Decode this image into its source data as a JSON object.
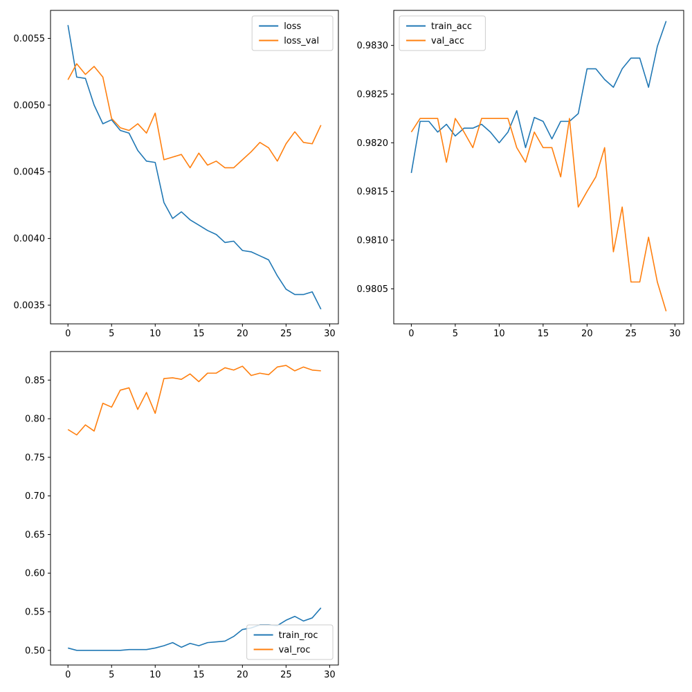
{
  "chart_data": [
    {
      "type": "line",
      "title": "",
      "xlabel": "",
      "ylabel": "",
      "xlim": [
        -2,
        31
      ],
      "ylim": [
        0.00336,
        0.00571
      ],
      "xticks": [
        0,
        5,
        10,
        15,
        20,
        25,
        30
      ],
      "yticks": [
        0.0035,
        0.004,
        0.0045,
        0.005,
        0.0055
      ],
      "ytick_labels": [
        "0.0035",
        "0.0040",
        "0.0045",
        "0.0050",
        "0.0055"
      ],
      "legend_position": "upper right",
      "grid": false,
      "x": [
        0,
        1,
        2,
        3,
        4,
        5,
        6,
        7,
        8,
        9,
        10,
        11,
        12,
        13,
        14,
        15,
        16,
        17,
        18,
        19,
        20,
        21,
        22,
        23,
        24,
        25,
        26,
        27,
        28,
        29
      ],
      "series": [
        {
          "name": "loss",
          "color": "#1f77b4",
          "values": [
            0.0056,
            0.00521,
            0.0052,
            0.005,
            0.00486,
            0.00489,
            0.00481,
            0.00479,
            0.00466,
            0.00458,
            0.00457,
            0.00427,
            0.00415,
            0.0042,
            0.00414,
            0.0041,
            0.00406,
            0.00403,
            0.00397,
            0.00398,
            0.00391,
            0.0039,
            0.00387,
            0.00384,
            0.00372,
            0.00362,
            0.00358,
            0.00358,
            0.0036,
            0.00347
          ]
        },
        {
          "name": "loss_val",
          "color": "#ff7f0e",
          "values": [
            0.00519,
            0.00531,
            0.00523,
            0.00529,
            0.00521,
            0.0049,
            0.00483,
            0.00481,
            0.00486,
            0.00479,
            0.00494,
            0.00459,
            0.00461,
            0.00463,
            0.00453,
            0.00464,
            0.00455,
            0.00458,
            0.00453,
            0.00453,
            0.00459,
            0.00465,
            0.00472,
            0.00468,
            0.00458,
            0.00471,
            0.0048,
            0.00472,
            0.00471,
            0.00485
          ]
        }
      ]
    },
    {
      "type": "line",
      "title": "",
      "xlabel": "",
      "ylabel": "",
      "xlim": [
        -2,
        31
      ],
      "ylim": [
        0.98014,
        0.98336
      ],
      "xticks": [
        0,
        5,
        10,
        15,
        20,
        25,
        30
      ],
      "yticks": [
        0.9805,
        0.981,
        0.9815,
        0.982,
        0.9825,
        0.983
      ],
      "ytick_labels": [
        "0.9805",
        "0.9810",
        "0.9815",
        "0.9820",
        "0.9825",
        "0.9830"
      ],
      "legend_position": "upper left",
      "grid": false,
      "x": [
        0,
        1,
        2,
        3,
        4,
        5,
        6,
        7,
        8,
        9,
        10,
        11,
        12,
        13,
        14,
        15,
        16,
        17,
        18,
        19,
        20,
        21,
        22,
        23,
        24,
        25,
        26,
        27,
        28,
        29
      ],
      "series": [
        {
          "name": "train_acc",
          "color": "#1f77b4",
          "values": [
            0.98169,
            0.98222,
            0.98222,
            0.98211,
            0.98219,
            0.98207,
            0.98215,
            0.98215,
            0.98219,
            0.98211,
            0.982,
            0.98211,
            0.98233,
            0.98195,
            0.98226,
            0.98222,
            0.98204,
            0.98222,
            0.98222,
            0.9823,
            0.98276,
            0.98276,
            0.98265,
            0.98257,
            0.98276,
            0.98287,
            0.98287,
            0.98257,
            0.98299,
            0.98325
          ]
        },
        {
          "name": "val_acc",
          "color": "#ff7f0e",
          "values": [
            0.98211,
            0.98225,
            0.98225,
            0.98225,
            0.9818,
            0.98225,
            0.98211,
            0.98195,
            0.98225,
            0.98225,
            0.98225,
            0.98225,
            0.98195,
            0.9818,
            0.98211,
            0.98195,
            0.98195,
            0.98165,
            0.98225,
            0.98134,
            0.9815,
            0.98165,
            0.98195,
            0.98088,
            0.98134,
            0.98057,
            0.98057,
            0.98103,
            0.98057,
            0.98027
          ]
        }
      ]
    },
    {
      "type": "line",
      "title": "",
      "xlabel": "",
      "ylabel": "",
      "xlim": [
        -2,
        31
      ],
      "ylim": [
        0.481,
        0.887
      ],
      "xticks": [
        0,
        5,
        10,
        15,
        20,
        25,
        30
      ],
      "yticks": [
        0.5,
        0.55,
        0.6,
        0.65,
        0.7,
        0.75,
        0.8,
        0.85
      ],
      "ytick_labels": [
        "0.50",
        "0.55",
        "0.60",
        "0.65",
        "0.70",
        "0.75",
        "0.80",
        "0.85"
      ],
      "legend_position": "lower right",
      "grid": false,
      "x": [
        0,
        1,
        2,
        3,
        4,
        5,
        6,
        7,
        8,
        9,
        10,
        11,
        12,
        13,
        14,
        15,
        16,
        17,
        18,
        19,
        20,
        21,
        22,
        23,
        24,
        25,
        26,
        27,
        28,
        29
      ],
      "series": [
        {
          "name": "train_roc",
          "color": "#1f77b4",
          "values": [
            0.503,
            0.5,
            0.5,
            0.5,
            0.5,
            0.5,
            0.5,
            0.501,
            0.501,
            0.501,
            0.503,
            0.506,
            0.51,
            0.504,
            0.509,
            0.506,
            0.51,
            0.511,
            0.512,
            0.518,
            0.527,
            0.529,
            0.533,
            0.533,
            0.532,
            0.539,
            0.544,
            0.538,
            0.542,
            0.555
          ]
        },
        {
          "name": "val_roc",
          "color": "#ff7f0e",
          "values": [
            0.786,
            0.779,
            0.792,
            0.784,
            0.82,
            0.815,
            0.837,
            0.84,
            0.812,
            0.834,
            0.807,
            0.852,
            0.853,
            0.851,
            0.858,
            0.848,
            0.859,
            0.859,
            0.866,
            0.863,
            0.868,
            0.856,
            0.859,
            0.857,
            0.867,
            0.869,
            0.862,
            0.867,
            0.863,
            0.862
          ]
        }
      ]
    }
  ]
}
